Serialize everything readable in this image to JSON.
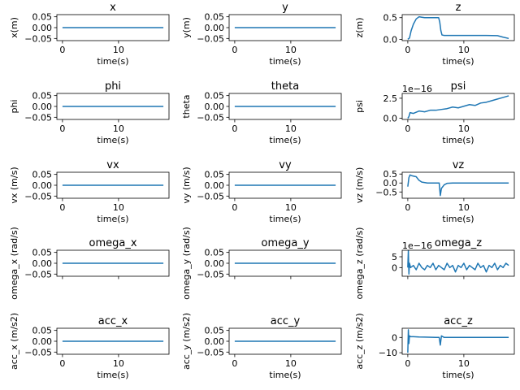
{
  "chart_data": [
    {
      "type": "line",
      "title": "x",
      "xlabel": "time(s)",
      "ylabel": "x(m)",
      "xlim": [
        -1,
        19
      ],
      "ylim": [
        -0.06,
        0.06
      ],
      "xticks": [
        0,
        10
      ],
      "xtick_labels": [
        "0",
        "10"
      ],
      "yticks": [
        0.05,
        0,
        -0.05
      ],
      "ytick_labels": [
        "0.05",
        "0.00",
        "−0.05"
      ],
      "offset_label": "",
      "series": [
        {
          "x": [
            0,
            18
          ],
          "y": [
            0,
            0
          ]
        }
      ]
    },
    {
      "type": "line",
      "title": "y",
      "xlabel": "time(s)",
      "ylabel": "y(m)",
      "xlim": [
        -1,
        19
      ],
      "ylim": [
        -0.06,
        0.06
      ],
      "xticks": [
        0,
        10
      ],
      "xtick_labels": [
        "0",
        "10"
      ],
      "yticks": [
        0.05,
        0,
        -0.05
      ],
      "ytick_labels": [
        "0.05",
        "0.00",
        "−0.05"
      ],
      "offset_label": "",
      "series": [
        {
          "x": [
            0,
            18
          ],
          "y": [
            0,
            0
          ]
        }
      ]
    },
    {
      "type": "line",
      "title": "z",
      "xlabel": "time(s)",
      "ylabel": "z(m)",
      "xlim": [
        -1,
        19
      ],
      "ylim": [
        -0.03,
        0.57
      ],
      "xticks": [
        0,
        10
      ],
      "xtick_labels": [
        "0",
        "10"
      ],
      "yticks": [
        0.5,
        0
      ],
      "ytick_labels": [
        "0.5",
        "0.0"
      ],
      "offset_label": "",
      "series": [
        {
          "x": [
            0,
            0.3,
            0.6,
            1.0,
            1.5,
            2.0,
            2.5,
            3.0,
            4.0,
            5.0,
            5.5,
            5.7,
            5.9,
            6.1,
            6.5,
            8,
            10,
            12,
            14,
            16,
            17,
            18
          ],
          "y": [
            0.0,
            0.03,
            0.2,
            0.35,
            0.47,
            0.52,
            0.51,
            0.5,
            0.5,
            0.5,
            0.5,
            0.4,
            0.2,
            0.1,
            0.09,
            0.09,
            0.09,
            0.09,
            0.09,
            0.085,
            0.05,
            0.02
          ]
        }
      ]
    },
    {
      "type": "line",
      "title": "phi",
      "xlabel": "time(s)",
      "ylabel": "phi",
      "xlim": [
        -1,
        19
      ],
      "ylim": [
        -0.06,
        0.06
      ],
      "xticks": [
        0,
        10
      ],
      "xtick_labels": [
        "0",
        "10"
      ],
      "yticks": [
        0.05,
        0,
        -0.05
      ],
      "ytick_labels": [
        "0.05",
        "0.00",
        "−0.05"
      ],
      "offset_label": "",
      "series": [
        {
          "x": [
            0,
            18
          ],
          "y": [
            0,
            0
          ]
        }
      ]
    },
    {
      "type": "line",
      "title": "theta",
      "xlabel": "time(s)",
      "ylabel": "theta",
      "xlim": [
        -1,
        19
      ],
      "ylim": [
        -0.06,
        0.06
      ],
      "xticks": [
        0,
        10
      ],
      "xtick_labels": [
        "0",
        "10"
      ],
      "yticks": [
        0.05,
        0,
        -0.05
      ],
      "ytick_labels": [
        "0.05",
        "0.00",
        "−0.05"
      ],
      "offset_label": "",
      "series": [
        {
          "x": [
            0,
            18
          ],
          "y": [
            0,
            0
          ]
        }
      ]
    },
    {
      "type": "line",
      "title": "psi",
      "xlabel": "time(s)",
      "ylabel": "psi",
      "xlim": [
        -1,
        19
      ],
      "ylim": [
        -0.15,
        3.1
      ],
      "xticks": [
        0,
        10
      ],
      "xtick_labels": [
        "0",
        "10"
      ],
      "yticks": [
        2.5,
        0
      ],
      "ytick_labels": [
        "2.5",
        "0.0"
      ],
      "offset_label": "1e−16",
      "series": [
        {
          "x": [
            0,
            0.2,
            0.4,
            1,
            2,
            3,
            4,
            5,
            6,
            7,
            8,
            9,
            10,
            11,
            12,
            13,
            14,
            15,
            16,
            17,
            18
          ],
          "y": [
            0,
            0.2,
            0.7,
            0.6,
            0.9,
            0.8,
            1.0,
            1.0,
            1.1,
            1.2,
            1.4,
            1.3,
            1.5,
            1.7,
            1.6,
            1.9,
            2.0,
            2.2,
            2.4,
            2.6,
            2.8
          ]
        }
      ]
    },
    {
      "type": "line",
      "title": "vx",
      "xlabel": "time(s)",
      "ylabel": "vx (m/s)",
      "xlim": [
        -1,
        19
      ],
      "ylim": [
        -0.06,
        0.06
      ],
      "xticks": [
        0,
        10
      ],
      "xtick_labels": [
        "0",
        "10"
      ],
      "yticks": [
        0.05,
        0,
        -0.05
      ],
      "ytick_labels": [
        "0.05",
        "0.00",
        "−0.05"
      ],
      "offset_label": "",
      "series": [
        {
          "x": [
            0,
            18
          ],
          "y": [
            0,
            0
          ]
        }
      ]
    },
    {
      "type": "line",
      "title": "vy",
      "xlabel": "time(s)",
      "ylabel": "vy (m/s)",
      "xlim": [
        -1,
        19
      ],
      "ylim": [
        -0.06,
        0.06
      ],
      "xticks": [
        0,
        10
      ],
      "xtick_labels": [
        "0",
        "10"
      ],
      "yticks": [
        0.05,
        0,
        -0.05
      ],
      "ytick_labels": [
        "0.05",
        "0.00",
        "−0.05"
      ],
      "offset_label": "",
      "series": [
        {
          "x": [
            0,
            18
          ],
          "y": [
            0,
            0
          ]
        }
      ]
    },
    {
      "type": "line",
      "title": "vz",
      "xlabel": "time(s)",
      "ylabel": "vz (m/s)",
      "xlim": [
        -1,
        19
      ],
      "ylim": [
        -0.85,
        0.6
      ],
      "xticks": [
        0,
        10
      ],
      "xtick_labels": [
        "0",
        "10"
      ],
      "yticks": [
        0.5,
        0,
        -0.5
      ],
      "ytick_labels": [
        "0.5",
        "0.0",
        "−0.5"
      ],
      "offset_label": "",
      "series": [
        {
          "x": [
            0,
            0.2,
            0.4,
            0.8,
            1.5,
            2.0,
            2.5,
            3.5,
            5.0,
            5.6,
            5.8,
            6.0,
            6.5,
            7.0,
            8,
            10,
            14,
            16,
            18
          ],
          "y": [
            -0.2,
            0.3,
            0.45,
            0.4,
            0.35,
            0.15,
            0.05,
            0.0,
            0.0,
            0.0,
            -0.7,
            -0.3,
            -0.1,
            -0.02,
            0,
            0,
            0,
            0,
            0
          ]
        }
      ]
    },
    {
      "type": "line",
      "title": "omega_x",
      "xlabel": "",
      "ylabel": "omega_x (rad/s)",
      "xlim": [
        -1,
        19
      ],
      "ylim": [
        -0.06,
        0.06
      ],
      "xticks": [
        0,
        10
      ],
      "xtick_labels": [
        "",
        ""
      ],
      "yticks": [
        0.05,
        0,
        -0.05
      ],
      "ytick_labels": [
        "0.05",
        "0.00",
        "−0.05"
      ],
      "offset_label": "",
      "series": [
        {
          "x": [
            0,
            18
          ],
          "y": [
            0,
            0
          ]
        }
      ]
    },
    {
      "type": "line",
      "title": "omega_y",
      "xlabel": "",
      "ylabel": "omega_y (rad/s)",
      "xlim": [
        -1,
        19
      ],
      "ylim": [
        -0.06,
        0.06
      ],
      "xticks": [
        0,
        10
      ],
      "xtick_labels": [
        "",
        ""
      ],
      "yticks": [
        0.05,
        0,
        -0.05
      ],
      "ytick_labels": [
        "0.05",
        "0.00",
        "−0.05"
      ],
      "offset_label": "",
      "series": [
        {
          "x": [
            0,
            18
          ],
          "y": [
            0,
            0
          ]
        }
      ]
    },
    {
      "type": "line",
      "title": "omega_z",
      "xlabel": "",
      "ylabel": "omega_z (rad/s)",
      "xlim": [
        -1,
        19
      ],
      "ylim": [
        -4,
        8
      ],
      "xticks": [
        0,
        10
      ],
      "xtick_labels": [
        "",
        ""
      ],
      "yticks": [
        5,
        0
      ],
      "ytick_labels": [
        "5",
        "0"
      ],
      "offset_label": "1e−16",
      "series": [
        {
          "x": [
            0,
            0.1,
            0.2,
            0.3,
            0.5,
            1,
            1.5,
            2,
            2.5,
            3,
            3.5,
            4,
            4.5,
            5,
            5.5,
            6,
            6.5,
            7,
            7.5,
            8,
            8.5,
            9,
            9.5,
            10,
            10.5,
            11,
            11.5,
            12,
            12.5,
            13,
            13.5,
            14,
            14.5,
            15,
            15.5,
            16,
            16.5,
            17,
            17.5,
            18
          ],
          "y": [
            0,
            8,
            -3,
            2,
            0,
            1,
            -1,
            2,
            0,
            -1,
            1,
            0,
            2,
            -1,
            1,
            0,
            -1,
            2,
            0,
            1,
            -2,
            1,
            0,
            2,
            -1,
            1,
            0,
            -1,
            2,
            0,
            1,
            -2,
            1,
            0,
            2,
            -1,
            1,
            0,
            2,
            1
          ]
        }
      ]
    },
    {
      "type": "line",
      "title": "acc_x",
      "xlabel": "time(s)",
      "ylabel": "acc_x (m/s2)",
      "xlim": [
        -1,
        19
      ],
      "ylim": [
        -0.06,
        0.06
      ],
      "xticks": [
        0,
        10
      ],
      "xtick_labels": [
        "0",
        "10"
      ],
      "yticks": [
        0.05,
        0,
        -0.05
      ],
      "ytick_labels": [
        "0.05",
        "0.00",
        "−0.05"
      ],
      "offset_label": "",
      "series": [
        {
          "x": [
            0,
            18
          ],
          "y": [
            0,
            0
          ]
        }
      ]
    },
    {
      "type": "line",
      "title": "acc_y",
      "xlabel": "time(s)",
      "ylabel": "acc_y (m/s2)",
      "xlim": [
        -1,
        19
      ],
      "ylim": [
        -0.06,
        0.06
      ],
      "xticks": [
        0,
        10
      ],
      "xtick_labels": [
        "0",
        "10"
      ],
      "yticks": [
        0.05,
        0,
        -0.05
      ],
      "ytick_labels": [
        "0.05",
        "0.00",
        "−0.05"
      ],
      "offset_label": "",
      "series": [
        {
          "x": [
            0,
            18
          ],
          "y": [
            0,
            0
          ]
        }
      ]
    },
    {
      "type": "line",
      "title": "acc_z",
      "xlabel": "time(s)",
      "ylabel": "acc_z (m/s2)",
      "xlim": [
        -1,
        19
      ],
      "ylim": [
        -11,
        6
      ],
      "xticks": [
        0,
        10
      ],
      "xtick_labels": [
        "0",
        "10"
      ],
      "yticks": [
        0,
        -10
      ],
      "ytick_labels": [
        "0",
        "−10"
      ],
      "offset_label": "",
      "series": [
        {
          "x": [
            0,
            0.1,
            0.2,
            0.3,
            0.5,
            1,
            2,
            3,
            5,
            5.6,
            5.8,
            6.0,
            6.5,
            8,
            10,
            14,
            18
          ],
          "y": [
            -10,
            5,
            -4,
            1,
            0.5,
            0.5,
            0.3,
            0.2,
            0,
            0,
            -5,
            1,
            0,
            0,
            0,
            0,
            0
          ]
        }
      ]
    }
  ],
  "style": {
    "line_color": "#1f77b4",
    "axis_color": "#000000",
    "background": "#ffffff"
  }
}
